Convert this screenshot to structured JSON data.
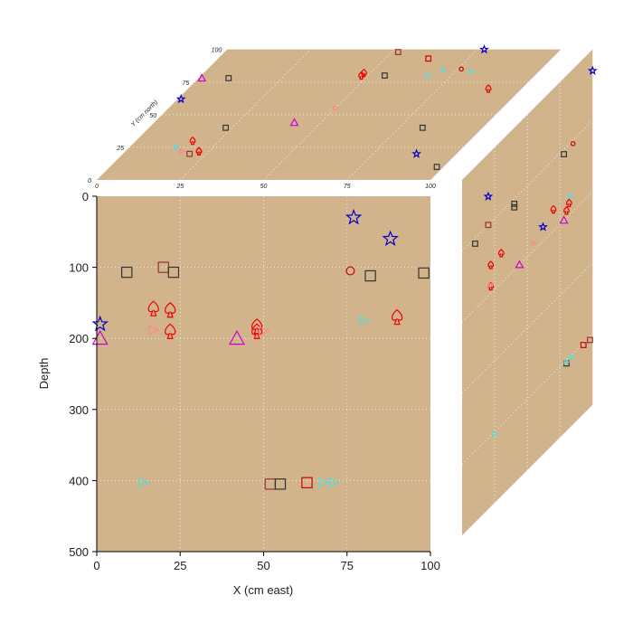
{
  "chart_data": {
    "type": "scatter",
    "subtype": "3d-cube-projection",
    "background_color": "#d2b48c",
    "xlabel": "X (cm east)",
    "ylabel": "Depth",
    "zlabel": "Y (cm north)",
    "xlim": [
      0,
      100
    ],
    "ylim": [
      0,
      500
    ],
    "zlim": [
      0,
      100
    ],
    "xticks": [
      "0",
      "25",
      "50",
      "75",
      "100"
    ],
    "yticks": [
      "0",
      "100",
      "200",
      "300",
      "400",
      "500"
    ],
    "zticks": [
      "0",
      "25",
      "50",
      "75",
      "100"
    ],
    "grid": true,
    "points": [
      {
        "x": 77,
        "depth": 30,
        "y": 100,
        "marker": "star",
        "color": "#0000cc"
      },
      {
        "x": 1,
        "depth": 180,
        "y": 62,
        "marker": "star",
        "color": "#0000cc"
      },
      {
        "x": 88,
        "depth": 60,
        "y": 20,
        "marker": "star",
        "color": "#0000cc"
      },
      {
        "x": 20,
        "depth": 100,
        "y": 20,
        "marker": "square",
        "color": "#993333"
      },
      {
        "x": 52,
        "depth": 405,
        "y": 98,
        "marker": "square",
        "color": "#993333"
      },
      {
        "x": 63,
        "depth": 403,
        "y": 93,
        "marker": "square",
        "color": "#cc0000"
      },
      {
        "x": 9,
        "depth": 107,
        "y": 78,
        "marker": "square",
        "color": "#333333"
      },
      {
        "x": 23,
        "depth": 107,
        "y": 40,
        "marker": "square",
        "color": "#333333"
      },
      {
        "x": 82,
        "depth": 112,
        "y": 40,
        "marker": "square",
        "color": "#333333"
      },
      {
        "x": 98,
        "depth": 108,
        "y": 10,
        "marker": "square",
        "color": "#333333"
      },
      {
        "x": 55,
        "depth": 405,
        "y": 80,
        "marker": "square",
        "color": "#333333"
      },
      {
        "x": 76,
        "depth": 105,
        "y": 85,
        "marker": "circle",
        "color": "#cc0000"
      },
      {
        "x": 17,
        "depth": 158,
        "y": 30,
        "marker": "spade",
        "color": "#ee0000"
      },
      {
        "x": 22,
        "depth": 160,
        "y": 22,
        "marker": "spade",
        "color": "#ee0000"
      },
      {
        "x": 22,
        "depth": 190,
        "y": 22,
        "marker": "spade",
        "color": "#ee0000"
      },
      {
        "x": 48,
        "depth": 183,
        "y": 82,
        "marker": "spade",
        "color": "#ee0000"
      },
      {
        "x": 48,
        "depth": 190,
        "y": 80,
        "marker": "spade",
        "color": "#ee0000"
      },
      {
        "x": 90,
        "depth": 170,
        "y": 70,
        "marker": "spade",
        "color": "#ee0000"
      },
      {
        "x": 1,
        "depth": 200,
        "y": 78,
        "marker": "triangle",
        "color": "#cc00cc"
      },
      {
        "x": 42,
        "depth": 200,
        "y": 44,
        "marker": "triangle",
        "color": "#cc00cc"
      },
      {
        "x": 17,
        "depth": 188,
        "y": 22,
        "marker": "triangle-right",
        "color": "#ff8888"
      },
      {
        "x": 50,
        "depth": 190,
        "y": 55,
        "marker": "triangle-right",
        "color": "#ff8888"
      },
      {
        "x": 80,
        "depth": 175,
        "y": 83,
        "marker": "triangle-right",
        "color": "#55dddd"
      },
      {
        "x": 14,
        "depth": 403,
        "y": 25,
        "marker": "triangle-right",
        "color": "#55dddd"
      },
      {
        "x": 68,
        "depth": 403,
        "y": 80,
        "marker": "triangle-right",
        "color": "#55dddd"
      },
      {
        "x": 71,
        "depth": 403,
        "y": 84,
        "marker": "triangle-right",
        "color": "#55dddd"
      }
    ]
  }
}
